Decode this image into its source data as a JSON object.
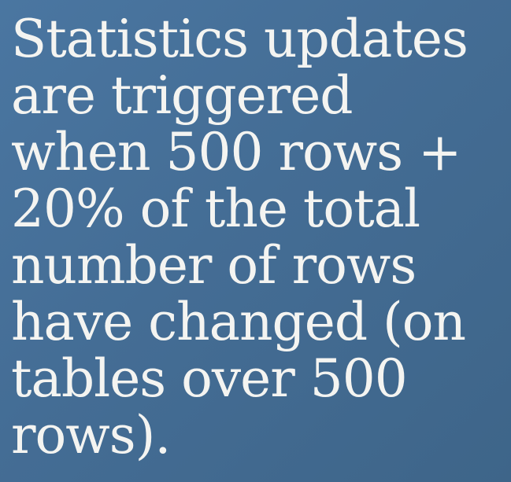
{
  "slide": {
    "lines": [
      "Statistics updates",
      "are triggered",
      "when 500 rows +",
      "20% of the total",
      "number of rows",
      "have changed (on",
      "tables over 500",
      "rows)."
    ]
  },
  "colors": {
    "background": "#466f97",
    "text": "#f4f4f1"
  }
}
